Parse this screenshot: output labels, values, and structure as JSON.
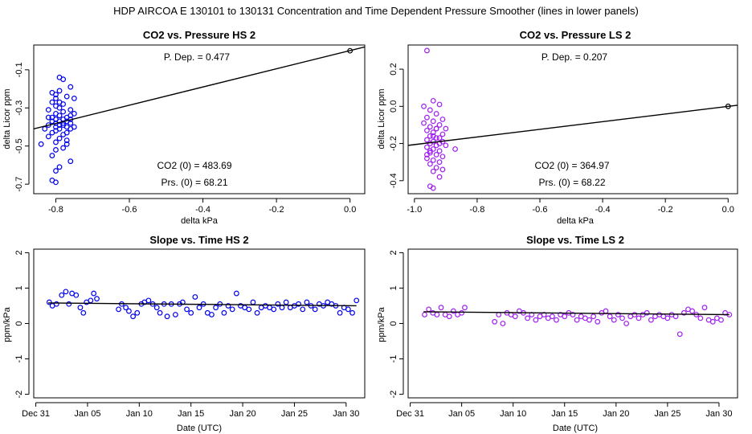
{
  "main_title": "HDP    AIRCOA E    130101 to 130131    Concentration and Time Dependent Pressure Smoother (lines in lower panels)",
  "colors": {
    "hs": "#0000ee",
    "ls": "#a020f0",
    "line": "#000000",
    "axis": "#000000"
  },
  "chart_data": [
    {
      "id": "co2-pressure-hs",
      "type": "scatter",
      "title": "CO2 vs. Pressure HS 2",
      "xlabel": "delta kPa",
      "ylabel": "delta Licor ppm",
      "xlim": [
        -0.86,
        0.04
      ],
      "ylim": [
        -0.75,
        0.03
      ],
      "xticks": [
        -0.8,
        -0.6,
        -0.4,
        -0.2,
        0.0
      ],
      "xticklabels": [
        "-0.8",
        "-0.6",
        "-0.4",
        "-0.2",
        "0.0"
      ],
      "yticks": [
        -0.7,
        -0.5,
        -0.3,
        -0.1
      ],
      "yticklabels": [
        "-0.7",
        "-0.5",
        "-0.3",
        "-0.1"
      ],
      "series_color": "hs",
      "annotations": {
        "pdep": "P. Dep. =  0.477",
        "co2_0": "CO2 (0) =  483.69",
        "prs_0": "Prs. (0) =  68.21"
      },
      "fit_line": [
        [
          -0.86,
          -0.41
        ],
        [
          0.04,
          0.02
        ]
      ],
      "origin_point": [
        0.0,
        0.0
      ],
      "points": [
        [
          -0.79,
          -0.14
        ],
        [
          -0.78,
          -0.15
        ],
        [
          -0.76,
          -0.19
        ],
        [
          -0.79,
          -0.21
        ],
        [
          -0.81,
          -0.22
        ],
        [
          -0.8,
          -0.23
        ],
        [
          -0.77,
          -0.24
        ],
        [
          -0.8,
          -0.25
        ],
        [
          -0.75,
          -0.25
        ],
        [
          -0.81,
          -0.27
        ],
        [
          -0.78,
          -0.28
        ],
        [
          -0.8,
          -0.29
        ],
        [
          -0.79,
          -0.3
        ],
        [
          -0.76,
          -0.31
        ],
        [
          -0.82,
          -0.31
        ],
        [
          -0.78,
          -0.32
        ],
        [
          -0.8,
          -0.33
        ],
        [
          -0.75,
          -0.33
        ],
        [
          -0.79,
          -0.34
        ],
        [
          -0.81,
          -0.35
        ],
        [
          -0.77,
          -0.35
        ],
        [
          -0.8,
          -0.36
        ],
        [
          -0.78,
          -0.36
        ],
        [
          -0.76,
          -0.36
        ],
        [
          -0.79,
          -0.37
        ],
        [
          -0.81,
          -0.37
        ],
        [
          -0.77,
          -0.37
        ],
        [
          -0.8,
          -0.38
        ],
        [
          -0.78,
          -0.38
        ],
        [
          -0.76,
          -0.38
        ],
        [
          -0.79,
          -0.39
        ],
        [
          -0.82,
          -0.39
        ],
        [
          -0.8,
          -0.4
        ],
        [
          -0.77,
          -0.4
        ],
        [
          -0.75,
          -0.4
        ],
        [
          -0.83,
          -0.41
        ],
        [
          -0.79,
          -0.41
        ],
        [
          -0.76,
          -0.41
        ],
        [
          -0.8,
          -0.42
        ],
        [
          -0.81,
          -0.43
        ],
        [
          -0.78,
          -0.44
        ],
        [
          -0.82,
          -0.45
        ],
        [
          -0.79,
          -0.46
        ],
        [
          -0.77,
          -0.47
        ],
        [
          -0.8,
          -0.48
        ],
        [
          -0.84,
          -0.49
        ],
        [
          -0.77,
          -0.49
        ],
        [
          -0.78,
          -0.51
        ],
        [
          -0.8,
          -0.52
        ],
        [
          -0.81,
          -0.55
        ],
        [
          -0.76,
          -0.58
        ],
        [
          -0.79,
          -0.61
        ],
        [
          -0.8,
          -0.63
        ],
        [
          -0.81,
          -0.68
        ],
        [
          -0.8,
          -0.69
        ],
        [
          -0.78,
          -0.39
        ],
        [
          -0.76,
          -0.34
        ],
        [
          -0.79,
          -0.27
        ],
        [
          -0.82,
          -0.35
        ],
        [
          -0.77,
          -0.43
        ]
      ]
    },
    {
      "id": "co2-pressure-ls",
      "type": "scatter",
      "title": "CO2 vs. Pressure LS 2",
      "xlabel": "delta kPa",
      "ylabel": "delta Licor ppm",
      "xlim": [
        -1.02,
        0.03
      ],
      "ylim": [
        -0.47,
        0.33
      ],
      "xticks": [
        -1.0,
        -0.8,
        -0.6,
        -0.4,
        -0.2,
        0.0
      ],
      "xticklabels": [
        "-1.0",
        "-0.8",
        "-0.6",
        "-0.4",
        "-0.2",
        "0.0"
      ],
      "yticks": [
        -0.4,
        -0.2,
        0.0,
        0.2
      ],
      "yticklabels": [
        "-0.4",
        "-0.2",
        "0.0",
        "0.2"
      ],
      "series_color": "ls",
      "annotations": {
        "pdep": "P. Dep. =  0.207",
        "co2_0": "CO2 (0) =  364.97",
        "prs_0": "Prs. (0) =  68.22"
      },
      "fit_line": [
        [
          -1.02,
          -0.21
        ],
        [
          0.03,
          0.006
        ]
      ],
      "origin_point": [
        0.0,
        0.0
      ],
      "points": [
        [
          -0.96,
          0.3
        ],
        [
          -0.94,
          0.03
        ],
        [
          -0.97,
          0.0
        ],
        [
          -0.92,
          0.01
        ],
        [
          -0.95,
          -0.02
        ],
        [
          -0.93,
          -0.04
        ],
        [
          -0.96,
          -0.06
        ],
        [
          -0.91,
          -0.07
        ],
        [
          -0.94,
          -0.08
        ],
        [
          -0.97,
          -0.09
        ],
        [
          -0.92,
          -0.1
        ],
        [
          -0.95,
          -0.11
        ],
        [
          -0.93,
          -0.12
        ],
        [
          -0.9,
          -0.12
        ],
        [
          -0.96,
          -0.13
        ],
        [
          -0.94,
          -0.14
        ],
        [
          -0.91,
          -0.15
        ],
        [
          -0.95,
          -0.16
        ],
        [
          -0.93,
          -0.17
        ],
        [
          -0.92,
          -0.17
        ],
        [
          -0.96,
          -0.18
        ],
        [
          -0.94,
          -0.19
        ],
        [
          -0.91,
          -0.19
        ],
        [
          -0.95,
          -0.2
        ],
        [
          -0.93,
          -0.21
        ],
        [
          -0.9,
          -0.21
        ],
        [
          -0.96,
          -0.22
        ],
        [
          -0.94,
          -0.23
        ],
        [
          -0.87,
          -0.23
        ],
        [
          -0.92,
          -0.24
        ],
        [
          -0.95,
          -0.25
        ],
        [
          -0.93,
          -0.26
        ],
        [
          -0.91,
          -0.27
        ],
        [
          -0.96,
          -0.28
        ],
        [
          -0.94,
          -0.29
        ],
        [
          -0.92,
          -0.3
        ],
        [
          -0.95,
          -0.31
        ],
        [
          -0.93,
          -0.33
        ],
        [
          -0.91,
          -0.34
        ],
        [
          -0.94,
          -0.35
        ],
        [
          -0.92,
          -0.38
        ],
        [
          -0.95,
          -0.43
        ],
        [
          -0.94,
          -0.44
        ],
        [
          -0.93,
          -0.12
        ],
        [
          -0.95,
          -0.24
        ],
        [
          -0.92,
          -0.2
        ],
        [
          -0.94,
          -0.16
        ],
        [
          -0.96,
          -0.26
        ]
      ]
    },
    {
      "id": "slope-time-hs",
      "type": "scatter",
      "title": "Slope vs. Time HS 2",
      "xlabel": "Date (UTC)",
      "ylabel": "ppm/kPa",
      "xlim": [
        -0.2,
        31.8
      ],
      "ylim": [
        -2.1,
        2.1
      ],
      "xticks": [
        0,
        5,
        10,
        15,
        20,
        25,
        30
      ],
      "xticklabels": [
        "Dec 31",
        "Jan 05",
        "Jan 10",
        "Jan 15",
        "Jan 20",
        "Jan 25",
        "Jan 30"
      ],
      "yticks": [
        -2,
        -1,
        0,
        1,
        2
      ],
      "yticklabels": [
        "-2",
        "-1",
        "0",
        "1",
        "2"
      ],
      "series_color": "hs",
      "fit_line": [
        [
          1.2,
          0.58
        ],
        [
          31.0,
          0.5
        ]
      ],
      "points": [
        [
          1.3,
          0.6
        ],
        [
          1.6,
          0.5
        ],
        [
          2.0,
          0.55
        ],
        [
          2.5,
          0.8
        ],
        [
          2.9,
          0.9
        ],
        [
          3.2,
          0.55
        ],
        [
          3.5,
          0.85
        ],
        [
          3.9,
          0.8
        ],
        [
          4.3,
          0.45
        ],
        [
          4.6,
          0.3
        ],
        [
          4.9,
          0.6
        ],
        [
          5.3,
          0.65
        ],
        [
          5.6,
          0.85
        ],
        [
          5.9,
          0.7
        ],
        [
          8.0,
          0.4
        ],
        [
          8.3,
          0.55
        ],
        [
          8.7,
          0.45
        ],
        [
          9.0,
          0.35
        ],
        [
          9.4,
          0.2
        ],
        [
          9.8,
          0.3
        ],
        [
          10.2,
          0.55
        ],
        [
          10.5,
          0.6
        ],
        [
          10.9,
          0.65
        ],
        [
          11.3,
          0.55
        ],
        [
          11.7,
          0.45
        ],
        [
          12.0,
          0.3
        ],
        [
          12.4,
          0.55
        ],
        [
          12.7,
          0.2
        ],
        [
          13.1,
          0.55
        ],
        [
          13.5,
          0.25
        ],
        [
          13.9,
          0.55
        ],
        [
          14.2,
          0.6
        ],
        [
          14.6,
          0.4
        ],
        [
          15.0,
          0.3
        ],
        [
          15.4,
          0.75
        ],
        [
          15.8,
          0.45
        ],
        [
          16.2,
          0.55
        ],
        [
          16.6,
          0.3
        ],
        [
          17.0,
          0.25
        ],
        [
          17.4,
          0.45
        ],
        [
          17.8,
          0.55
        ],
        [
          18.2,
          0.3
        ],
        [
          18.6,
          0.5
        ],
        [
          19.0,
          0.4
        ],
        [
          19.4,
          0.85
        ],
        [
          19.8,
          0.5
        ],
        [
          20.2,
          0.45
        ],
        [
          20.6,
          0.4
        ],
        [
          21.0,
          0.6
        ],
        [
          21.4,
          0.3
        ],
        [
          21.8,
          0.45
        ],
        [
          22.2,
          0.5
        ],
        [
          22.6,
          0.45
        ],
        [
          23.0,
          0.4
        ],
        [
          23.4,
          0.55
        ],
        [
          23.8,
          0.45
        ],
        [
          24.2,
          0.6
        ],
        [
          24.6,
          0.45
        ],
        [
          25.0,
          0.5
        ],
        [
          25.4,
          0.55
        ],
        [
          25.8,
          0.4
        ],
        [
          26.2,
          0.6
        ],
        [
          26.6,
          0.5
        ],
        [
          27.0,
          0.4
        ],
        [
          27.4,
          0.55
        ],
        [
          27.8,
          0.5
        ],
        [
          28.2,
          0.6
        ],
        [
          28.6,
          0.55
        ],
        [
          29.0,
          0.5
        ],
        [
          29.4,
          0.3
        ],
        [
          29.8,
          0.45
        ],
        [
          30.2,
          0.4
        ],
        [
          30.6,
          0.3
        ],
        [
          31.0,
          0.65
        ]
      ]
    },
    {
      "id": "slope-time-ls",
      "type": "scatter",
      "title": "Slope vs. Time LS 2",
      "xlabel": "Date (UTC)",
      "ylabel": "ppm/kPa",
      "xlim": [
        -0.2,
        31.8
      ],
      "ylim": [
        -2.1,
        2.1
      ],
      "xticks": [
        0,
        5,
        10,
        15,
        20,
        25,
        30
      ],
      "xticklabels": [
        "Dec 31",
        "Jan 05",
        "Jan 10",
        "Jan 15",
        "Jan 20",
        "Jan 25",
        "Jan 30"
      ],
      "yticks": [
        -2,
        -1,
        0,
        1,
        2
      ],
      "yticklabels": [
        "-2",
        "-1",
        "0",
        "1",
        "2"
      ],
      "series_color": "ls",
      "fit_line": [
        [
          1.3,
          0.33
        ],
        [
          31.0,
          0.25
        ]
      ],
      "points": [
        [
          1.4,
          0.25
        ],
        [
          1.8,
          0.4
        ],
        [
          2.2,
          0.3
        ],
        [
          2.6,
          0.25
        ],
        [
          3.0,
          0.45
        ],
        [
          3.4,
          0.25
        ],
        [
          3.8,
          0.2
        ],
        [
          4.2,
          0.35
        ],
        [
          4.6,
          0.25
        ],
        [
          5.0,
          0.3
        ],
        [
          5.3,
          0.45
        ],
        [
          8.2,
          0.05
        ],
        [
          8.6,
          0.25
        ],
        [
          9.0,
          0.0
        ],
        [
          9.4,
          0.3
        ],
        [
          9.8,
          0.25
        ],
        [
          10.2,
          0.2
        ],
        [
          10.6,
          0.35
        ],
        [
          11.0,
          0.3
        ],
        [
          11.4,
          0.15
        ],
        [
          11.8,
          0.25
        ],
        [
          12.2,
          0.1
        ],
        [
          12.6,
          0.2
        ],
        [
          13.0,
          0.25
        ],
        [
          13.4,
          0.15
        ],
        [
          13.8,
          0.2
        ],
        [
          14.2,
          0.1
        ],
        [
          14.6,
          0.25
        ],
        [
          15.0,
          0.2
        ],
        [
          15.4,
          0.3
        ],
        [
          15.8,
          0.25
        ],
        [
          16.2,
          0.1
        ],
        [
          16.6,
          0.2
        ],
        [
          17.0,
          0.15
        ],
        [
          17.4,
          0.1
        ],
        [
          17.8,
          0.2
        ],
        [
          18.2,
          0.05
        ],
        [
          18.6,
          0.3
        ],
        [
          19.0,
          0.35
        ],
        [
          19.4,
          0.2
        ],
        [
          19.8,
          0.1
        ],
        [
          20.2,
          0.25
        ],
        [
          20.6,
          0.15
        ],
        [
          21.0,
          0.0
        ],
        [
          21.4,
          0.2
        ],
        [
          21.8,
          0.25
        ],
        [
          22.2,
          0.15
        ],
        [
          22.6,
          0.25
        ],
        [
          23.0,
          0.3
        ],
        [
          23.4,
          0.1
        ],
        [
          23.8,
          0.2
        ],
        [
          24.2,
          0.25
        ],
        [
          24.6,
          0.2
        ],
        [
          25.0,
          0.15
        ],
        [
          25.4,
          0.25
        ],
        [
          25.8,
          0.2
        ],
        [
          26.2,
          -0.3
        ],
        [
          26.6,
          0.3
        ],
        [
          27.0,
          0.4
        ],
        [
          27.4,
          0.35
        ],
        [
          27.8,
          0.25
        ],
        [
          28.2,
          0.15
        ],
        [
          28.6,
          0.45
        ],
        [
          29.0,
          0.1
        ],
        [
          29.4,
          0.05
        ],
        [
          29.8,
          0.15
        ],
        [
          30.2,
          0.1
        ],
        [
          30.6,
          0.3
        ],
        [
          31.0,
          0.25
        ]
      ]
    }
  ]
}
